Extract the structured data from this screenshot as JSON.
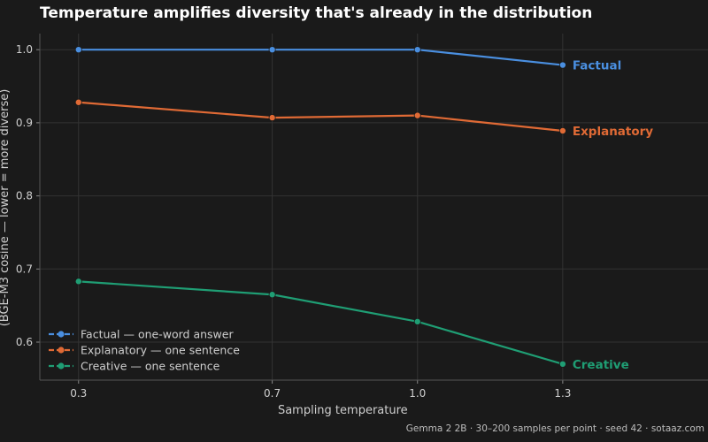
{
  "chart_data": {
    "type": "line",
    "title": "Temperature amplifies diversity that's already in the distribution",
    "xlabel": "Sampling temperature",
    "ylabel": "(BGE-M3 cosine — lower = more diverse)",
    "x": [
      0.3,
      0.7,
      1.0,
      1.3
    ],
    "x_tick_labels": [
      "0.3",
      "0.7",
      "1.0",
      "1.3"
    ],
    "xlim": [
      0.22,
      1.6
    ],
    "ylim": [
      0.548,
      1.022
    ],
    "y_ticks": [
      0.6,
      0.7,
      0.8,
      0.9,
      1.0
    ],
    "y_tick_labels": [
      "0.6",
      "0.7",
      "0.8",
      "0.9",
      "1.0"
    ],
    "grid": true,
    "legend_position": "bottom-left",
    "series": [
      {
        "name": "Factual — one-word answer",
        "end_label": "Factual",
        "color": "#4a8fe0",
        "values": [
          1.0,
          1.0,
          1.0,
          0.979
        ]
      },
      {
        "name": "Explanatory — one sentence",
        "end_label": "Explanatory",
        "color": "#e06a35",
        "values": [
          0.928,
          0.907,
          0.91,
          0.889
        ]
      },
      {
        "name": "Creative — one sentence",
        "end_label": "Creative",
        "color": "#1f9e74",
        "values": [
          0.683,
          0.665,
          0.628,
          0.57
        ]
      }
    ]
  },
  "footer": "Gemma 2 2B · 30–200 samples per point · seed 42 · sotaaz.com"
}
